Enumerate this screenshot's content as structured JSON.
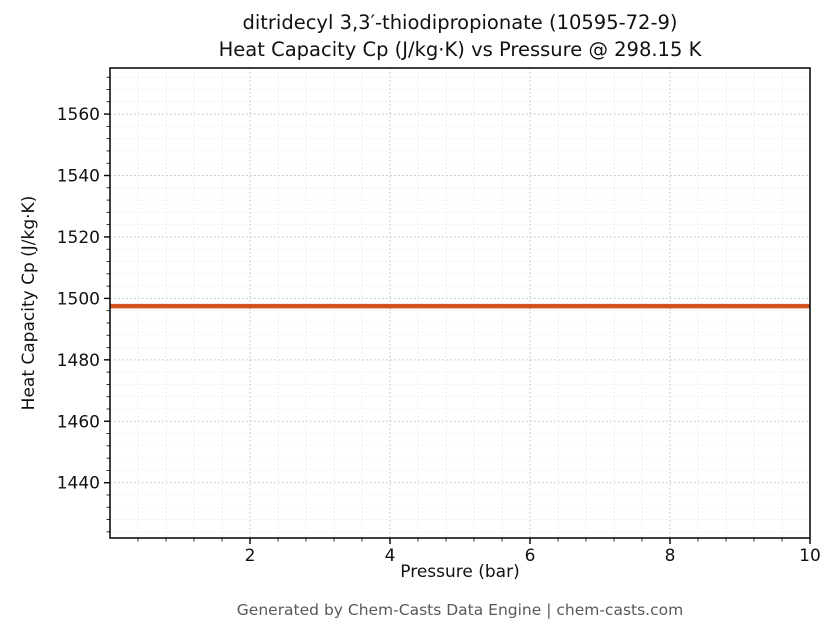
{
  "title": {
    "line1": "ditridecyl 3,3′-thiodipropionate (10595-72-9)",
    "line2": "Heat Capacity Cp (J/kg·K) vs Pressure @ 298.15 K"
  },
  "footer": {
    "text": "Generated by Chem-Casts Data Engine | chem-casts.com"
  },
  "colors": {
    "line": "#d2521e",
    "grid_major": "#bdbdbd",
    "grid_minor": "#dcdcdc",
    "spine": "#000000",
    "tick_label": "#111111",
    "footer_text": "#595959"
  },
  "chart_data": {
    "type": "line",
    "title": "ditridecyl 3,3′-thiodipropionate (10595-72-9)\nHeat Capacity Cp (J/kg·K) vs Pressure @ 298.15 K",
    "xlabel": "Pressure (bar)",
    "ylabel": "Heat Capacity Cp (J/kg·K)",
    "xlim": [
      0,
      10
    ],
    "ylim": [
      1422,
      1575
    ],
    "xticks": [
      2,
      4,
      6,
      8,
      10
    ],
    "yticks": [
      1440,
      1460,
      1480,
      1500,
      1520,
      1540,
      1560
    ],
    "x_minor_step": 0.4,
    "y_minor_step": 4,
    "grid": true,
    "legend": "none",
    "series": [
      {
        "name": "Heat Capacity Cp",
        "color": "#d2521e",
        "x": [
          0,
          1,
          2,
          3,
          4,
          5,
          6,
          7,
          8,
          9,
          10
        ],
        "y": [
          1497.5,
          1497.5,
          1497.5,
          1497.5,
          1497.5,
          1497.5,
          1497.5,
          1497.5,
          1497.5,
          1497.5,
          1497.5
        ]
      }
    ]
  }
}
